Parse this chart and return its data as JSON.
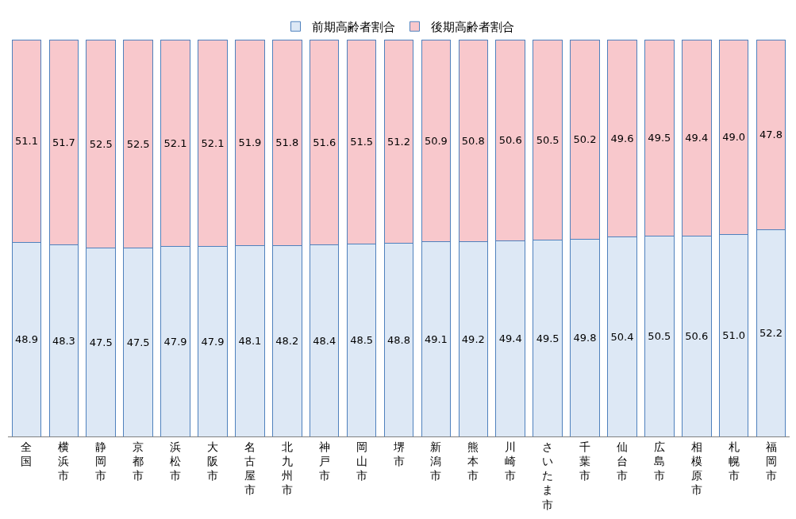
{
  "chart_data": {
    "type": "bar",
    "stacked": true,
    "legend": "top",
    "tick_labels": "x",
    "ylim": [
      0,
      100
    ],
    "categories": [
      "全国",
      "横浜市",
      "静岡市",
      "京都市",
      "浜松市",
      "大阪市",
      "名古屋市",
      "北九州市",
      "神戸市",
      "岡山市",
      "堺市",
      "新潟市",
      "熊本市",
      "川崎市",
      "さいたま市",
      "千葉市",
      "仙台市",
      "広島市",
      "相模原市",
      "札幌市",
      "福岡市"
    ],
    "series": [
      {
        "name": "前期高齢者割合",
        "color": "#dde8f5",
        "values": [
          48.9,
          48.3,
          47.5,
          47.5,
          47.9,
          47.9,
          48.1,
          48.2,
          48.4,
          48.5,
          48.8,
          49.1,
          49.2,
          49.4,
          49.5,
          49.8,
          50.4,
          50.5,
          50.6,
          51.0,
          52.2
        ],
        "value_labels": [
          "48.9",
          "48.3",
          "47.5",
          "47.5",
          "47.9",
          "47.9",
          "48.1",
          "48.2",
          "48.4",
          "48.5",
          "48.8",
          "49.1",
          "49.2",
          "49.4",
          "49.5",
          "49.8",
          "50.4",
          "50.5",
          "50.6",
          "51.0",
          "52.2"
        ]
      },
      {
        "name": "後期高齢者割合",
        "color": "#f8c8cc",
        "values": [
          51.1,
          51.7,
          52.5,
          52.5,
          52.1,
          52.1,
          51.9,
          51.8,
          51.6,
          51.5,
          51.2,
          50.9,
          50.8,
          50.6,
          50.5,
          50.2,
          49.6,
          49.5,
          49.4,
          49.0,
          47.8
        ],
        "value_labels": [
          "51.1",
          "51.7",
          "52.5",
          "52.5",
          "52.1",
          "52.1",
          "51.9",
          "51.8",
          "51.6",
          "51.5",
          "51.2",
          "50.9",
          "50.8",
          "50.6",
          "50.5",
          "50.2",
          "49.6",
          "49.5",
          "49.4",
          "49.0",
          "47.8"
        ]
      }
    ]
  }
}
